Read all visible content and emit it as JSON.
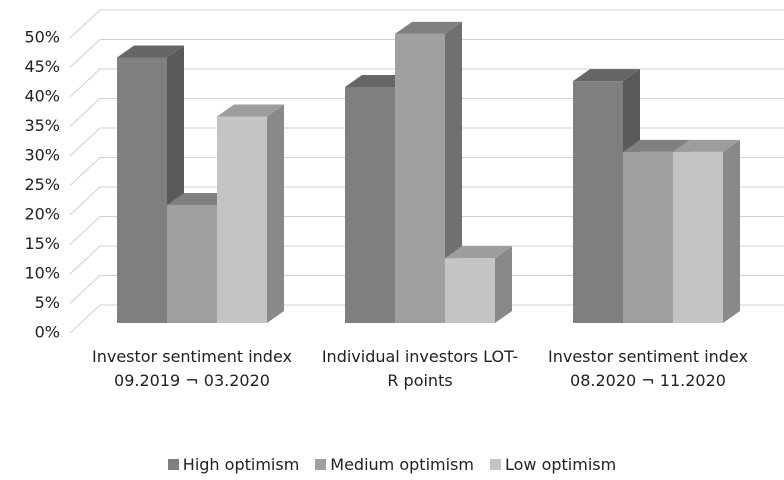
{
  "chart_data": {
    "type": "bar3d",
    "categories": [
      "Investor sentiment index 09.2019 ¬ 03.2020",
      "Individual investors LOT-R points",
      "Investor sentiment index 08.2020 ¬ 11.2020"
    ],
    "series": [
      {
        "name": "High optimism",
        "color": "#7f7f7f",
        "values": [
          45,
          40,
          41
        ]
      },
      {
        "name": "Medium optimism",
        "color": "#a0a0a0",
        "values": [
          20,
          49,
          29
        ]
      },
      {
        "name": "Low optimism",
        "color": "#c4c4c4",
        "values": [
          35,
          11,
          29
        ]
      }
    ],
    "ylim": [
      0,
      50
    ],
    "yticks": [
      {
        "value": 0,
        "label": "0%"
      },
      {
        "value": 5,
        "label": "5%"
      },
      {
        "value": 10,
        "label": "10%"
      },
      {
        "value": 15,
        "label": "15%"
      },
      {
        "value": 20,
        "label": "20%"
      },
      {
        "value": 25,
        "label": "25%"
      },
      {
        "value": 30,
        "label": "30%"
      },
      {
        "value": 35,
        "label": "35%"
      },
      {
        "value": 40,
        "label": "40%"
      },
      {
        "value": 45,
        "label": "45%"
      },
      {
        "value": 50,
        "label": "50%"
      }
    ],
    "grid": true,
    "legend": "bottom"
  }
}
